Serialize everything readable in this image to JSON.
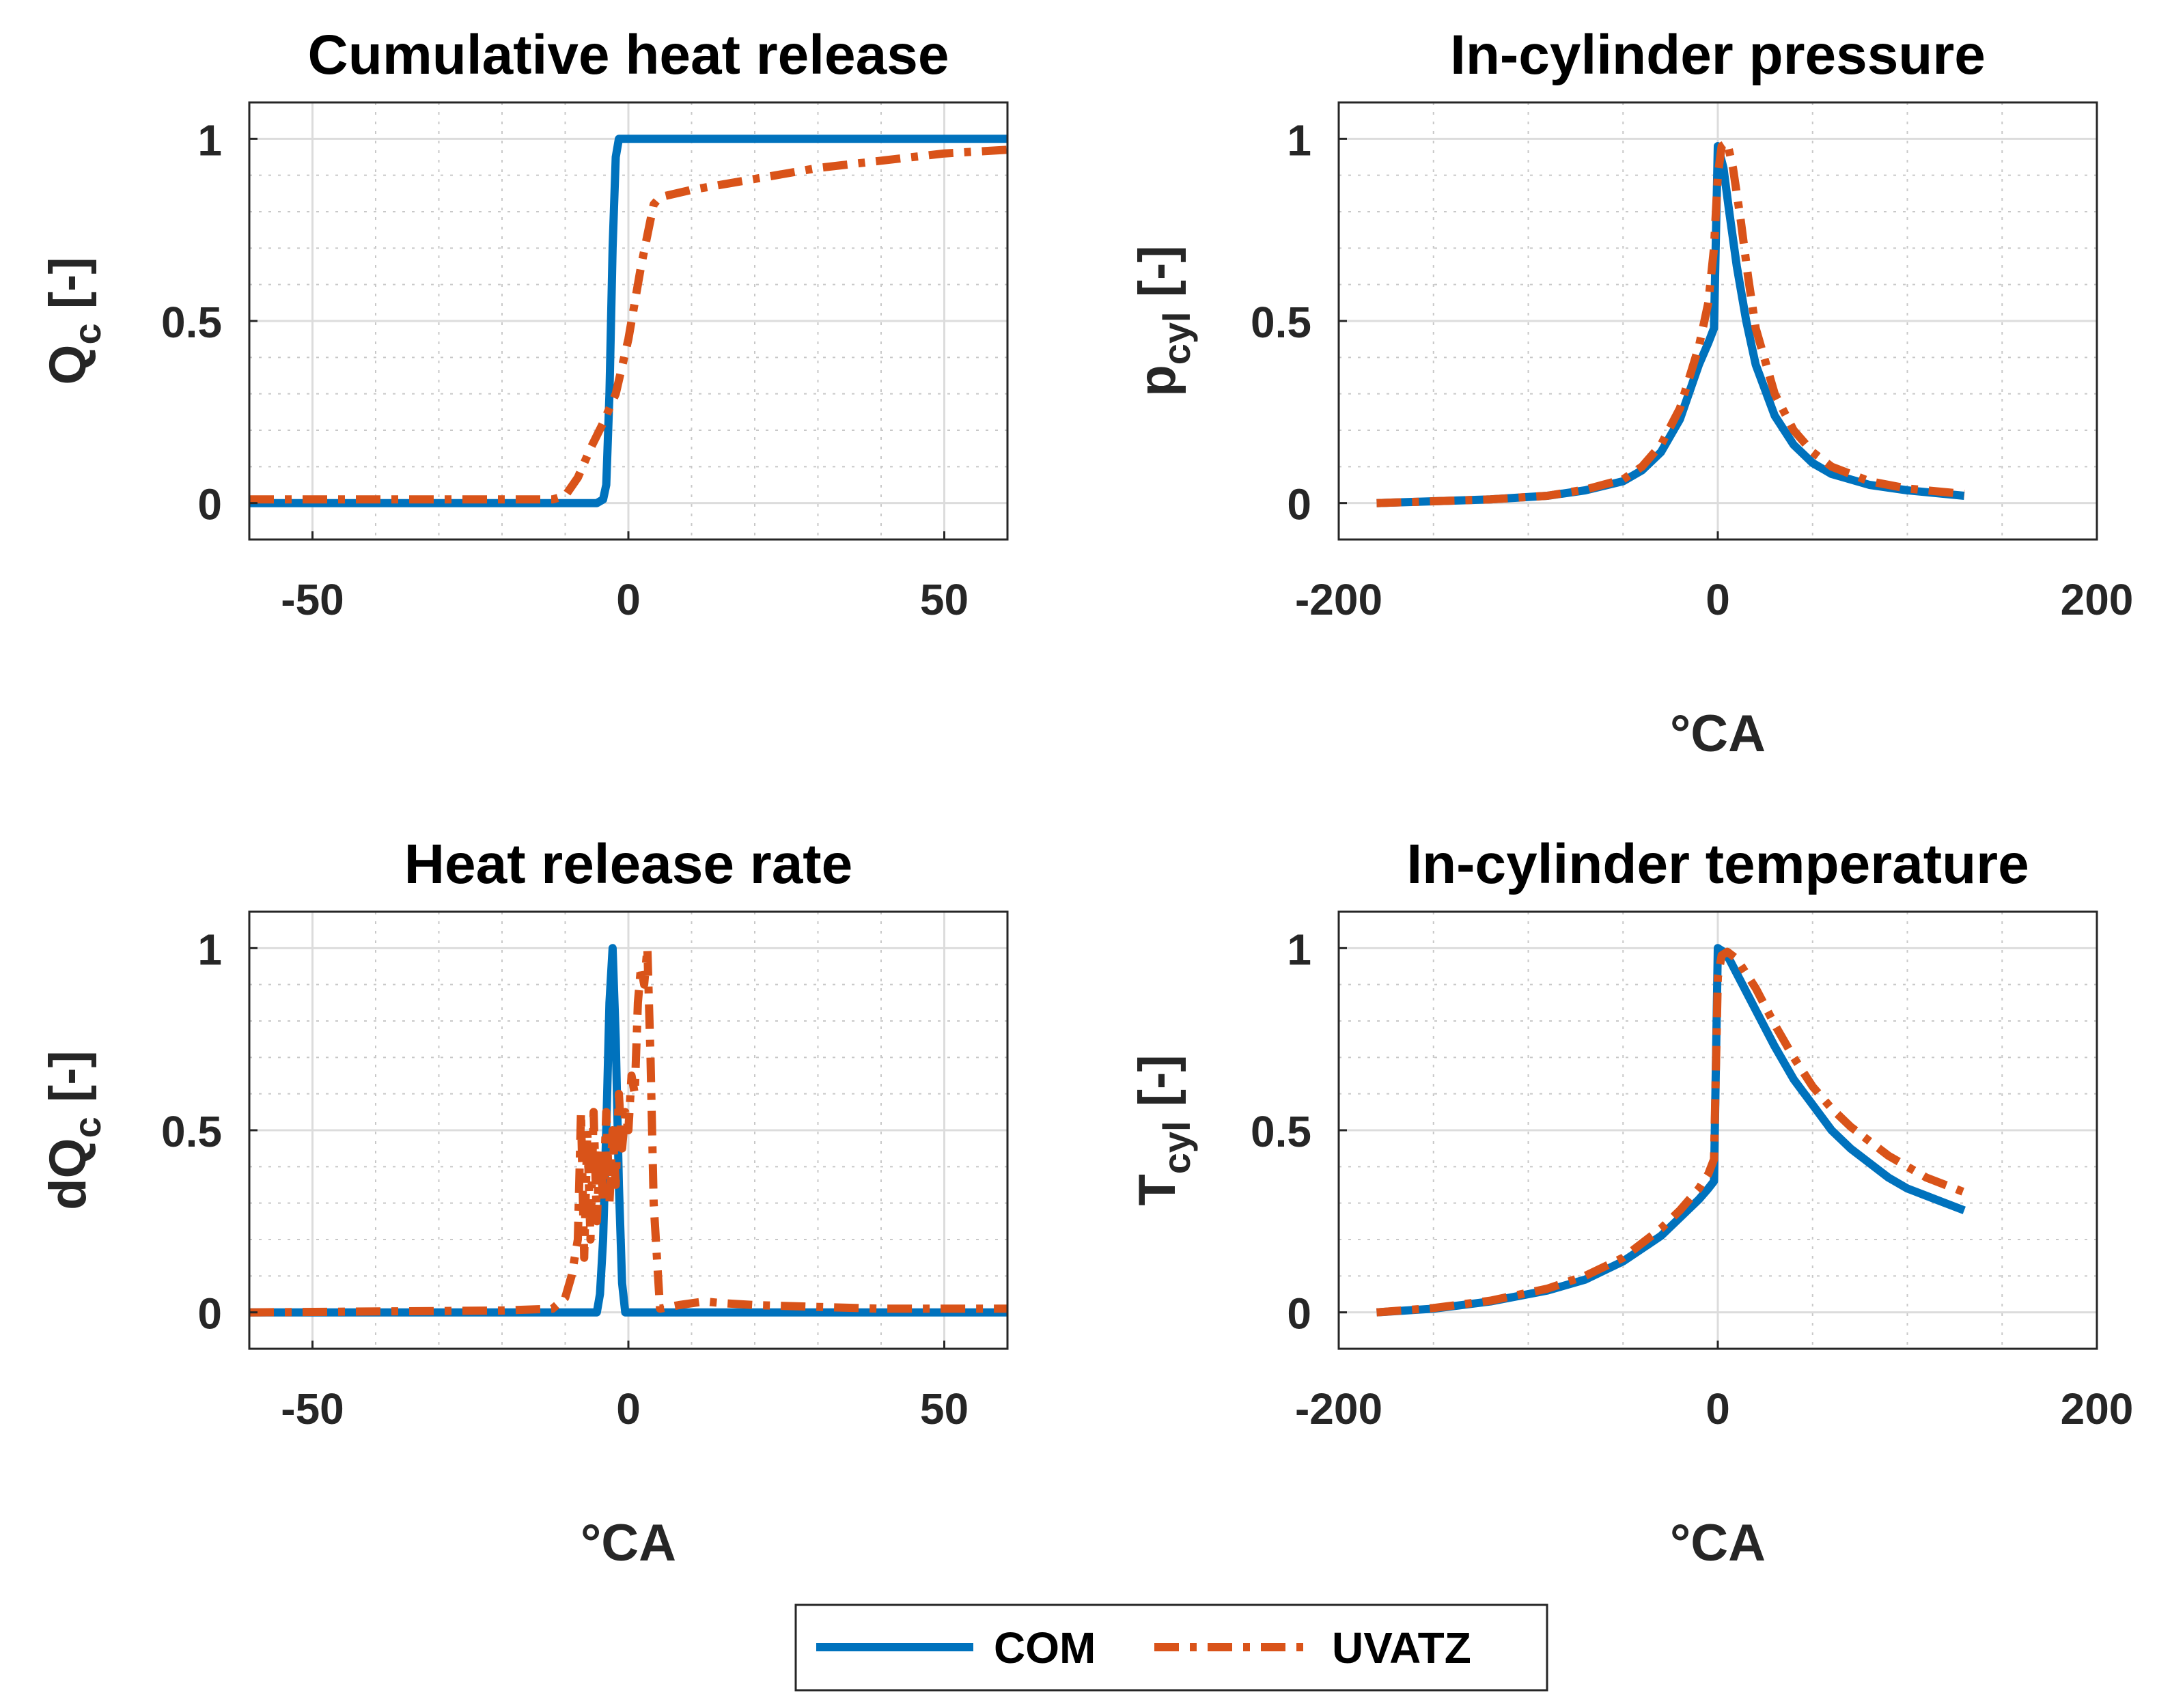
{
  "colors": {
    "com": "#0072BD",
    "uvatz": "#D95319",
    "grid": "#dcdcdc",
    "axis": "#262626"
  },
  "legend": {
    "location": "bottom-center",
    "entries": [
      "COM",
      "UVATZ"
    ]
  },
  "chart_data": [
    {
      "id": "cum",
      "type": "line",
      "title": "Cumulative heat release",
      "xlabel": "",
      "ylabel": {
        "base": "Q",
        "sub": "c",
        "suffix": " [-]"
      },
      "xlim": [
        -60,
        60
      ],
      "ylim": [
        -0.1,
        1.1
      ],
      "xticks": [
        -50,
        0,
        50
      ],
      "xtick_labels": [
        "-50",
        "0",
        "50"
      ],
      "yticks": [
        0,
        0.5,
        1
      ],
      "ytick_labels": [
        "0",
        "0.5",
        "1"
      ],
      "minor_x": [
        -40,
        -30,
        -20,
        -10,
        10,
        20,
        30,
        40
      ],
      "minor_y": [
        0.1,
        0.2,
        0.3,
        0.4,
        0.6,
        0.7,
        0.8,
        0.9
      ],
      "series": [
        {
          "name": "COM",
          "style": "solid",
          "x": [
            -60,
            -5,
            -4,
            -3.5,
            -3,
            -2.5,
            -2,
            -1.5,
            -1,
            60
          ],
          "y": [
            0,
            0,
            0.01,
            0.05,
            0.3,
            0.7,
            0.95,
            1.0,
            1.0,
            1.0
          ]
        },
        {
          "name": "UVATZ",
          "style": "dashdot",
          "x": [
            -60,
            -20,
            -12,
            -10,
            -8,
            -6,
            -4,
            -2,
            0,
            2,
            4,
            5,
            10,
            20,
            30,
            40,
            50,
            60
          ],
          "y": [
            0.01,
            0.01,
            0.01,
            0.02,
            0.07,
            0.15,
            0.22,
            0.3,
            0.45,
            0.65,
            0.82,
            0.84,
            0.86,
            0.89,
            0.92,
            0.94,
            0.96,
            0.97
          ]
        }
      ]
    },
    {
      "id": "pcyl",
      "type": "line",
      "title": "In-cylinder pressure",
      "xlabel": "°CA",
      "ylabel": {
        "base": "p",
        "sub": "cyl",
        "suffix": " [-]"
      },
      "xlim": [
        -200,
        200
      ],
      "ylim": [
        -0.1,
        1.1
      ],
      "xticks": [
        -200,
        0,
        200
      ],
      "xtick_labels": [
        "-200",
        "0",
        "200"
      ],
      "yticks": [
        0,
        0.5,
        1
      ],
      "ytick_labels": [
        "0",
        "0.5",
        "1"
      ],
      "minor_x": [
        -150,
        -100,
        -50,
        50,
        100,
        150
      ],
      "minor_y": [
        0.1,
        0.2,
        0.3,
        0.4,
        0.6,
        0.7,
        0.8,
        0.9
      ],
      "series": [
        {
          "name": "COM",
          "style": "solid",
          "x": [
            -180,
            -150,
            -120,
            -90,
            -70,
            -50,
            -40,
            -30,
            -20,
            -10,
            -5,
            -2,
            0,
            3,
            6,
            10,
            15,
            20,
            30,
            40,
            50,
            60,
            80,
            100,
            130
          ],
          "y": [
            0,
            0.005,
            0.01,
            0.02,
            0.035,
            0.06,
            0.09,
            0.14,
            0.23,
            0.38,
            0.44,
            0.48,
            0.98,
            0.92,
            0.8,
            0.65,
            0.5,
            0.38,
            0.24,
            0.16,
            0.11,
            0.08,
            0.05,
            0.035,
            0.02
          ]
        },
        {
          "name": "UVATZ",
          "style": "dashdot",
          "x": [
            -180,
            -150,
            -120,
            -90,
            -70,
            -50,
            -40,
            -30,
            -20,
            -10,
            -5,
            -2,
            0,
            2,
            5,
            8,
            12,
            16,
            20,
            30,
            40,
            50,
            60,
            80,
            100,
            130
          ],
          "y": [
            0,
            0.005,
            0.01,
            0.02,
            0.037,
            0.065,
            0.1,
            0.16,
            0.26,
            0.43,
            0.55,
            0.7,
            0.9,
            0.98,
            0.99,
            0.92,
            0.78,
            0.62,
            0.48,
            0.3,
            0.2,
            0.14,
            0.1,
            0.06,
            0.04,
            0.025
          ]
        }
      ]
    },
    {
      "id": "hrr",
      "type": "line",
      "title": "Heat release rate",
      "xlabel": "°CA",
      "ylabel": {
        "base": "dQ",
        "sub": "c",
        "suffix": " [-]"
      },
      "xlim": [
        -60,
        60
      ],
      "ylim": [
        -0.1,
        1.1
      ],
      "xticks": [
        -50,
        0,
        50
      ],
      "xtick_labels": [
        "-50",
        "0",
        "50"
      ],
      "yticks": [
        0,
        0.5,
        1
      ],
      "ytick_labels": [
        "0",
        "0.5",
        "1"
      ],
      "minor_x": [
        -40,
        -30,
        -20,
        -10,
        10,
        20,
        30,
        40
      ],
      "minor_y": [
        0.1,
        0.2,
        0.3,
        0.4,
        0.6,
        0.7,
        0.8,
        0.9
      ],
      "series": [
        {
          "name": "COM",
          "style": "solid",
          "x": [
            -60,
            -5,
            -4.5,
            -4,
            -3.5,
            -3,
            -2.5,
            -2,
            -1.5,
            -1,
            -0.5,
            60
          ],
          "y": [
            0,
            0,
            0.05,
            0.2,
            0.5,
            0.85,
            1.0,
            0.75,
            0.35,
            0.08,
            0,
            0
          ]
        },
        {
          "name": "UVATZ",
          "style": "dashdot",
          "x": [
            -60,
            -20,
            -12,
            -10,
            -9,
            -8,
            -7.5,
            -7,
            -6.5,
            -6,
            -5.5,
            -5,
            -4.5,
            -4,
            -3.5,
            -3,
            -2.5,
            -2,
            -1.5,
            -1,
            -0.5,
            0,
            0.5,
            1,
            1.5,
            2,
            2.5,
            3,
            3.5,
            4,
            5,
            8,
            12,
            15,
            20,
            30,
            40,
            60
          ],
          "y": [
            0,
            0.005,
            0.01,
            0.04,
            0.1,
            0.2,
            0.55,
            0.15,
            0.5,
            0.2,
            0.55,
            0.25,
            0.45,
            0.3,
            0.55,
            0.3,
            0.5,
            0.35,
            0.6,
            0.45,
            0.55,
            0.5,
            0.65,
            0.6,
            0.85,
            0.95,
            0.9,
            1.0,
            0.7,
            0.3,
            0.01,
            0.02,
            0.03,
            0.025,
            0.02,
            0.015,
            0.01,
            0.01
          ]
        }
      ]
    },
    {
      "id": "tcyl",
      "type": "line",
      "title": "In-cylinder temperature",
      "xlabel": "°CA",
      "ylabel": {
        "base": "T",
        "sub": "cyl",
        "suffix": " [-]"
      },
      "xlim": [
        -200,
        200
      ],
      "ylim": [
        -0.1,
        1.1
      ],
      "xticks": [
        -200,
        0,
        200
      ],
      "xtick_labels": [
        "-200",
        "0",
        "200"
      ],
      "yticks": [
        0,
        0.5,
        1
      ],
      "ytick_labels": [
        "0",
        "0.5",
        "1"
      ],
      "minor_x": [
        -150,
        -100,
        -50,
        50,
        100,
        150
      ],
      "minor_y": [
        0.1,
        0.2,
        0.3,
        0.4,
        0.6,
        0.7,
        0.8,
        0.9
      ],
      "series": [
        {
          "name": "COM",
          "style": "solid",
          "x": [
            -180,
            -150,
            -120,
            -90,
            -70,
            -50,
            -30,
            -20,
            -10,
            -5,
            -2,
            0,
            3,
            6,
            10,
            20,
            30,
            40,
            50,
            60,
            70,
            80,
            90,
            100,
            110,
            120,
            130
          ],
          "y": [
            0,
            0.01,
            0.03,
            0.06,
            0.09,
            0.14,
            0.21,
            0.26,
            0.31,
            0.34,
            0.36,
            1.0,
            0.99,
            0.97,
            0.93,
            0.83,
            0.73,
            0.64,
            0.57,
            0.5,
            0.45,
            0.41,
            0.37,
            0.34,
            0.32,
            0.3,
            0.28
          ]
        },
        {
          "name": "UVATZ",
          "style": "dashdot",
          "x": [
            -180,
            -150,
            -120,
            -90,
            -70,
            -50,
            -30,
            -20,
            -10,
            -5,
            -2,
            0,
            2,
            5,
            10,
            20,
            30,
            40,
            50,
            60,
            70,
            80,
            90,
            100,
            110,
            120,
            130
          ],
          "y": [
            0,
            0.012,
            0.032,
            0.065,
            0.1,
            0.15,
            0.23,
            0.28,
            0.34,
            0.38,
            0.42,
            0.92,
            0.98,
            0.99,
            0.97,
            0.89,
            0.79,
            0.7,
            0.62,
            0.56,
            0.51,
            0.47,
            0.43,
            0.4,
            0.37,
            0.35,
            0.33
          ]
        }
      ]
    }
  ]
}
